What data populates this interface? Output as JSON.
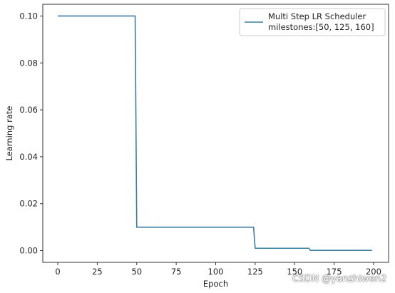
{
  "chart_data": {
    "type": "line",
    "title": "",
    "xlabel": "Epoch",
    "ylabel": "Learning rate",
    "xlim": [
      -9.5,
      209.5
    ],
    "ylim": [
      -0.005,
      0.105
    ],
    "x_ticks": [
      0,
      25,
      50,
      75,
      100,
      125,
      150,
      175,
      200
    ],
    "x_tick_labels": [
      "0",
      "25",
      "50",
      "75",
      "100",
      "125",
      "150",
      "175",
      "200"
    ],
    "y_ticks": [
      0.0,
      0.02,
      0.04,
      0.06,
      0.08,
      0.1
    ],
    "y_tick_labels": [
      "0.00",
      "0.02",
      "0.04",
      "0.06",
      "0.08",
      "0.10"
    ],
    "grid": false,
    "legend_position": "top-right",
    "legend_lines": [
      "Multi Step LR Scheduler",
      "milestones:[50, 125, 160]"
    ],
    "series": [
      {
        "name": "Multi Step LR Scheduler milestones:[50, 125, 160]",
        "color": "#3b7ea1",
        "x": [
          0,
          49,
          50,
          124,
          125,
          159,
          160,
          199
        ],
        "y": [
          0.1,
          0.1,
          0.01,
          0.01,
          0.001,
          0.001,
          0.0001,
          0.0001
        ]
      }
    ]
  },
  "watermark": "CSDN @yanzhiwen2"
}
